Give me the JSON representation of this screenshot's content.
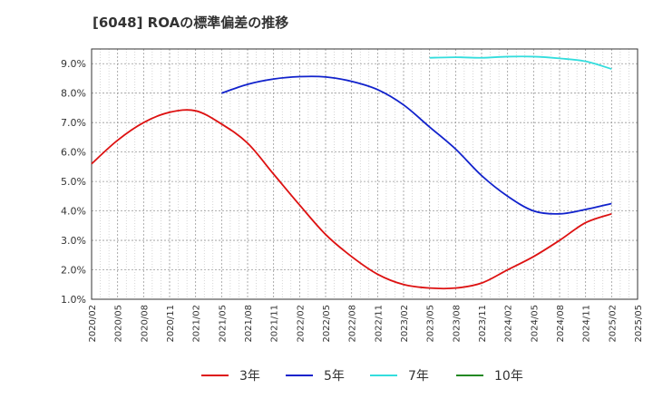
{
  "chart_data": {
    "type": "line",
    "title": "[6048]  ROAの標準偏差の推移",
    "xlabel": "",
    "ylabel": "",
    "ylim": [
      1.0,
      9.5
    ],
    "y_ticks": [
      "1.0%",
      "2.0%",
      "3.0%",
      "4.0%",
      "5.0%",
      "6.0%",
      "7.0%",
      "8.0%",
      "9.0%"
    ],
    "y_tick_values": [
      1.0,
      2.0,
      3.0,
      4.0,
      5.0,
      6.0,
      7.0,
      8.0,
      9.0
    ],
    "x_ticks": [
      "2020/02",
      "2020/05",
      "2020/08",
      "2020/11",
      "2021/02",
      "2021/05",
      "2021/08",
      "2021/11",
      "2022/02",
      "2022/05",
      "2022/08",
      "2022/11",
      "2023/02",
      "2023/05",
      "2023/08",
      "2023/11",
      "2024/02",
      "2024/05",
      "2024/08",
      "2024/11",
      "2025/02",
      "2025/05"
    ],
    "grid": true,
    "legend_position": "bottom",
    "series": [
      {
        "name": "3年",
        "color": "#dd1111",
        "points": [
          [
            "2020/02",
            5.6
          ],
          [
            "2020/05",
            6.4
          ],
          [
            "2020/08",
            7.0
          ],
          [
            "2020/11",
            7.35
          ],
          [
            "2021/02",
            7.4
          ],
          [
            "2021/05",
            6.95
          ],
          [
            "2021/08",
            6.3
          ],
          [
            "2021/11",
            5.25
          ],
          [
            "2022/02",
            4.2
          ],
          [
            "2022/05",
            3.2
          ],
          [
            "2022/08",
            2.45
          ],
          [
            "2022/11",
            1.85
          ],
          [
            "2023/02",
            1.5
          ],
          [
            "2023/05",
            1.38
          ],
          [
            "2023/08",
            1.38
          ],
          [
            "2023/11",
            1.55
          ],
          [
            "2024/02",
            2.0
          ],
          [
            "2024/05",
            2.45
          ],
          [
            "2024/08",
            3.0
          ],
          [
            "2024/11",
            3.6
          ],
          [
            "2025/02",
            3.9
          ]
        ]
      },
      {
        "name": "5年",
        "color": "#1122cc",
        "points": [
          [
            "2021/05",
            8.0
          ],
          [
            "2021/08",
            8.3
          ],
          [
            "2021/11",
            8.48
          ],
          [
            "2022/02",
            8.56
          ],
          [
            "2022/05",
            8.55
          ],
          [
            "2022/08",
            8.4
          ],
          [
            "2022/11",
            8.12
          ],
          [
            "2023/02",
            7.6
          ],
          [
            "2023/05",
            6.85
          ],
          [
            "2023/08",
            6.1
          ],
          [
            "2023/11",
            5.2
          ],
          [
            "2024/02",
            4.5
          ],
          [
            "2024/05",
            4.0
          ],
          [
            "2024/08",
            3.9
          ],
          [
            "2024/11",
            4.05
          ],
          [
            "2025/02",
            4.25
          ]
        ]
      },
      {
        "name": "7年",
        "color": "#33dddd",
        "points": [
          [
            "2023/05",
            9.2
          ],
          [
            "2023/08",
            9.22
          ],
          [
            "2023/11",
            9.2
          ],
          [
            "2024/02",
            9.24
          ],
          [
            "2024/05",
            9.24
          ],
          [
            "2024/08",
            9.18
          ],
          [
            "2024/11",
            9.08
          ],
          [
            "2025/02",
            8.82
          ]
        ]
      },
      {
        "name": "10年",
        "color": "#228822",
        "points": []
      }
    ]
  }
}
